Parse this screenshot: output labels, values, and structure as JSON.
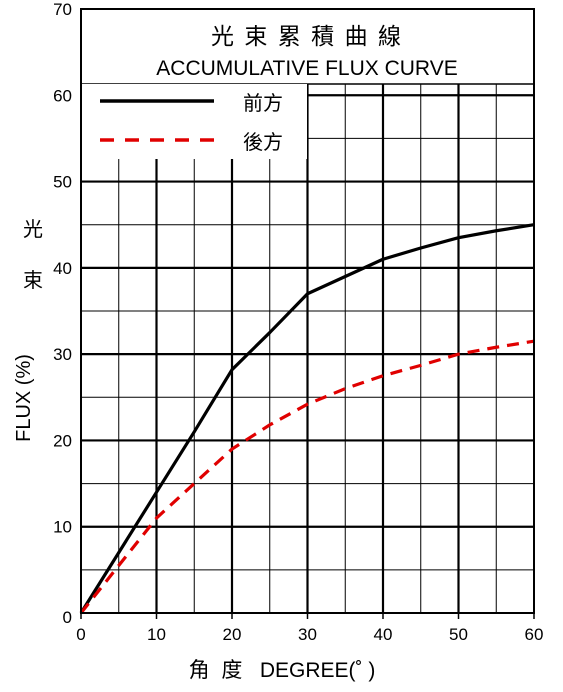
{
  "chart_data": {
    "type": "line",
    "title": "光 束 累 積 曲 線",
    "subtitle": "ACCUMULATIVE FLUX CURVE",
    "xlabel": "角  度   DEGREE(˚ )",
    "ylabel_zh": [
      "光",
      "束"
    ],
    "ylabel": "FLUX (%)",
    "xlim": [
      0,
      60
    ],
    "ylim": [
      0,
      70
    ],
    "x_ticks": [
      "0",
      "10",
      "20",
      "30",
      "40",
      "50",
      "60"
    ],
    "y_ticks": [
      "0",
      "10",
      "20",
      "30",
      "40",
      "50",
      "60",
      "70"
    ],
    "grid": true,
    "legend_position": "top-left",
    "series": [
      {
        "name": "前方",
        "color": "#000000",
        "dash": "solid",
        "x": [
          0,
          5,
          10,
          15,
          20,
          25,
          30,
          35,
          40,
          45,
          50,
          55,
          60
        ],
        "y": [
          0,
          7,
          14,
          21,
          28.2,
          32.5,
          37,
          39,
          41,
          42.3,
          43.5,
          44.3,
          45
        ]
      },
      {
        "name": "後方",
        "color": "#e00000",
        "dash": "dashed",
        "x": [
          0,
          5,
          10,
          15,
          20,
          25,
          30,
          35,
          40,
          45,
          50,
          55,
          60
        ],
        "y": [
          0,
          5.5,
          11,
          15,
          19,
          21.8,
          24.2,
          26,
          27.5,
          28.7,
          30,
          30.8,
          31.5
        ]
      }
    ]
  }
}
